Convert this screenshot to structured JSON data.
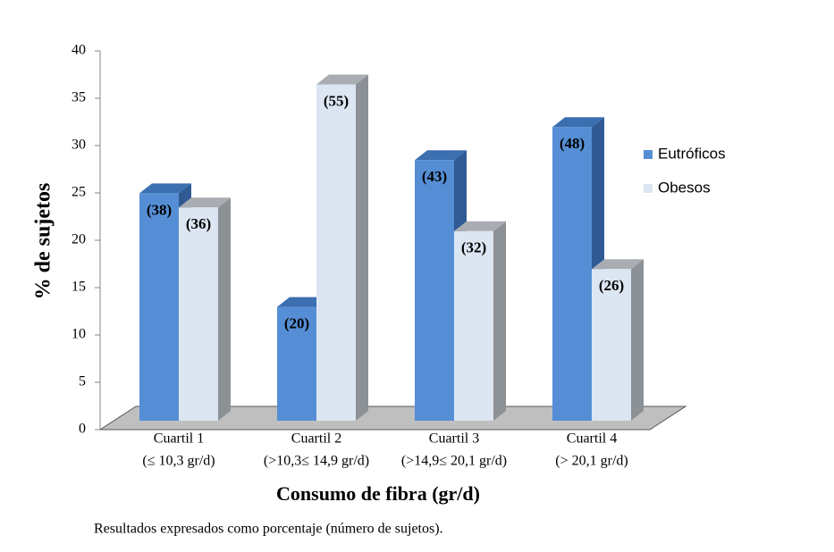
{
  "chart_data": {
    "type": "bar3d",
    "y_label": "% de sujetos",
    "x_label": "Consumo de fibra (gr/d)",
    "caption": "Resultados expresados como porcentaje (número de sujetos).",
    "categories": [
      [
        "Cuartil 1",
        "(≤ 10,3 gr/d)"
      ],
      [
        "Cuartil 2",
        "(>10,3≤ 14,9 gr/d)"
      ],
      [
        "Cuartil 3",
        "(>14,9≤ 20,1 gr/d)"
      ],
      [
        "Cuartil 4",
        "(> 20,1 gr/d)"
      ]
    ],
    "series": [
      {
        "name": "Eutróficos",
        "color": "#558ed5",
        "values": [
          26,
          14,
          29.5,
          33
        ],
        "labels": [
          "(38)",
          "(20)",
          "(43)",
          "(48)"
        ]
      },
      {
        "name": "Obesos",
        "color": "#dce6f2",
        "values": [
          24.5,
          37.5,
          22,
          18
        ],
        "labels": [
          "(36)",
          "(55)",
          "(32)",
          "(26)"
        ]
      }
    ],
    "ylim": [
      0,
      40
    ],
    "yticks": [
      0,
      5,
      10,
      15,
      20,
      25,
      30,
      35,
      40
    ]
  }
}
